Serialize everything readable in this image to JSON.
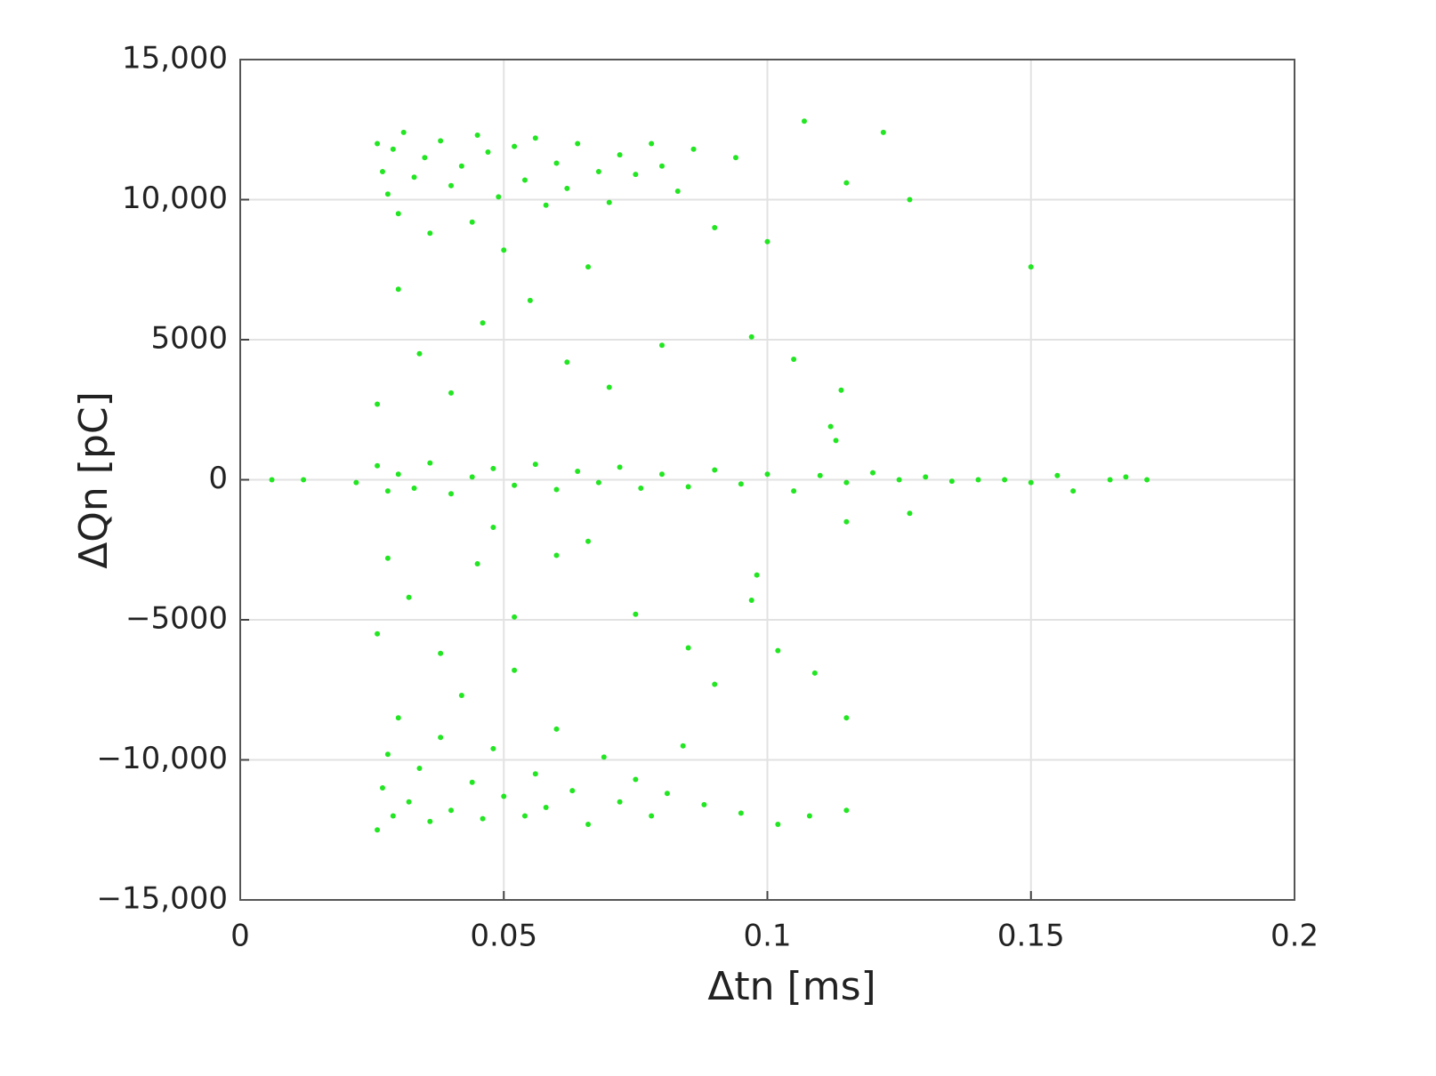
{
  "chart_data": {
    "type": "scatter",
    "xlabel": "Δtn [ms]",
    "ylabel": "ΔQn [pC]",
    "xlim": [
      0,
      0.2
    ],
    "xticks": [
      0,
      0.05,
      0.1,
      0.15,
      0.2
    ],
    "ylim": [
      -15000,
      15000
    ],
    "yticks": [
      {
        "value": -15000,
        "label": "−15,000"
      },
      {
        "value": -10000,
        "label": "−10,000"
      },
      {
        "value": -5000,
        "label": "−5000"
      },
      0,
      5000,
      {
        "value": 10000,
        "label": "10,000"
      },
      {
        "value": 15000,
        "label": "15,000"
      }
    ],
    "grid": true,
    "color": "#22e622",
    "x": [
      0.026,
      0.027,
      0.028,
      0.029,
      0.03,
      0.031,
      0.033,
      0.035,
      0.036,
      0.038,
      0.04,
      0.042,
      0.044,
      0.045,
      0.047,
      0.049,
      0.05,
      0.052,
      0.054,
      0.056,
      0.058,
      0.06,
      0.062,
      0.064,
      0.066,
      0.068,
      0.07,
      0.072,
      0.075,
      0.078,
      0.08,
      0.083,
      0.086,
      0.09,
      0.094,
      0.1,
      0.107,
      0.115,
      0.122,
      0.127,
      0.15,
      0.03,
      0.034,
      0.04,
      0.046,
      0.055,
      0.062,
      0.07,
      0.08,
      0.026,
      0.097,
      0.105,
      0.114,
      0.112,
      0.113,
      0.006,
      0.012,
      0.022,
      0.026,
      0.028,
      0.03,
      0.033,
      0.036,
      0.04,
      0.044,
      0.048,
      0.052,
      0.056,
      0.06,
      0.064,
      0.068,
      0.072,
      0.076,
      0.08,
      0.085,
      0.09,
      0.095,
      0.1,
      0.105,
      0.11,
      0.115,
      0.12,
      0.125,
      0.13,
      0.135,
      0.14,
      0.145,
      0.15,
      0.155,
      0.158,
      0.165,
      0.168,
      0.172,
      0.115,
      0.127,
      0.048,
      0.026,
      0.027,
      0.028,
      0.029,
      0.03,
      0.032,
      0.034,
      0.036,
      0.038,
      0.04,
      0.042,
      0.044,
      0.046,
      0.048,
      0.05,
      0.052,
      0.054,
      0.056,
      0.058,
      0.06,
      0.063,
      0.066,
      0.069,
      0.072,
      0.075,
      0.078,
      0.081,
      0.084,
      0.088,
      0.09,
      0.095,
      0.102,
      0.108,
      0.115,
      0.115,
      0.026,
      0.028,
      0.032,
      0.038,
      0.045,
      0.052,
      0.06,
      0.066,
      0.075,
      0.085,
      0.098,
      0.097,
      0.102,
      0.109
    ],
    "y": [
      12000,
      11000,
      10200,
      11800,
      9500,
      12400,
      10800,
      11500,
      8800,
      12100,
      10500,
      11200,
      9200,
      12300,
      11700,
      10100,
      8200,
      11900,
      10700,
      12200,
      9800,
      11300,
      10400,
      12000,
      7600,
      11000,
      9900,
      11600,
      10900,
      12000,
      11200,
      10300,
      11800,
      9000,
      11500,
      8500,
      12800,
      10600,
      12400,
      10000,
      7600,
      6800,
      4500,
      3100,
      5600,
      6400,
      4200,
      3300,
      4800,
      2700,
      5100,
      4300,
      3200,
      1900,
      1400,
      0,
      0,
      -100,
      500,
      -400,
      200,
      -300,
      600,
      -500,
      100,
      400,
      -200,
      550,
      -350,
      300,
      -100,
      450,
      -300,
      200,
      -250,
      350,
      -150,
      200,
      -400,
      150,
      -100,
      250,
      0,
      100,
      -50,
      0,
      0,
      -100,
      150,
      -400,
      0,
      100,
      0,
      -1500,
      -1200,
      -1700,
      -12500,
      -11000,
      -9800,
      -12000,
      -8500,
      -11500,
      -10300,
      -12200,
      -9200,
      -11800,
      -7700,
      -10800,
      -12100,
      -9600,
      -11300,
      -6800,
      -12000,
      -10500,
      -11700,
      -8900,
      -11100,
      -12300,
      -9900,
      -11500,
      -10700,
      -12000,
      -11200,
      -9500,
      -11600,
      -7300,
      -11900,
      -12300,
      -12000,
      -11800,
      -8500,
      -5500,
      -2800,
      -4200,
      -6200,
      -3000,
      -4900,
      -2700,
      -2200,
      -4800,
      -6000,
      -3400,
      -4300,
      -6100,
      -6900
    ]
  }
}
